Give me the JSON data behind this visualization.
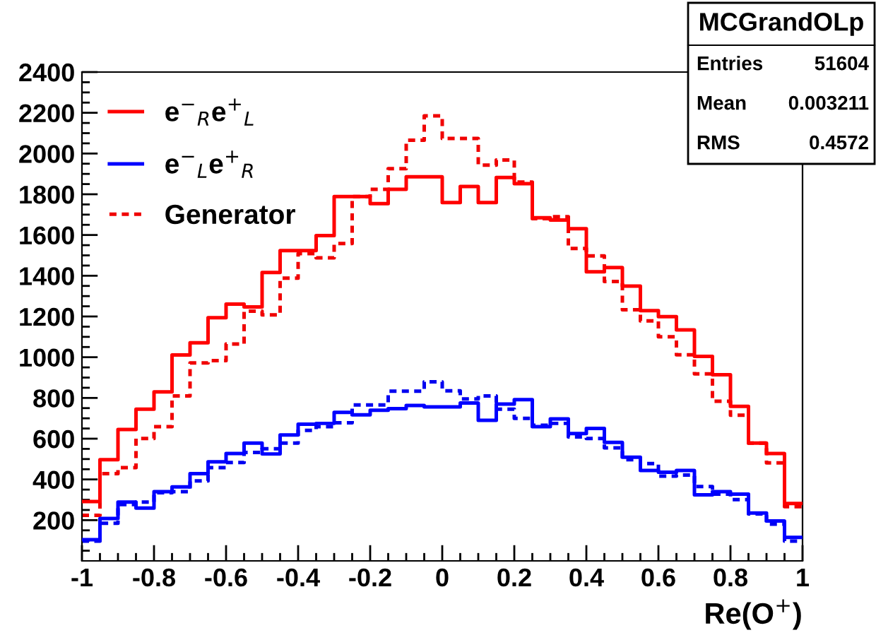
{
  "chart_data": {
    "type": "histogram",
    "xlabel": "Re(O$^{+}$)",
    "bins": [
      -1,
      -0.95,
      -0.9,
      -0.85,
      -0.8,
      -0.75,
      -0.7,
      -0.65,
      -0.6,
      -0.55,
      -0.5,
      -0.45,
      -0.4,
      -0.35,
      -0.3,
      -0.25,
      -0.2,
      -0.15,
      -0.1,
      -0.05,
      0,
      0.05,
      0.1,
      0.15,
      0.2,
      0.25,
      0.3,
      0.35,
      0.4,
      0.45,
      0.5,
      0.55,
      0.6,
      0.65,
      0.7,
      0.75,
      0.8,
      0.85,
      0.9,
      0.95,
      1
    ],
    "series": [
      {
        "name": "e$^{−}$$_{R}$e$^{+}$$_{L}$",
        "color": "#ff0000",
        "line_style": "solid",
        "values": [
          291,
          497,
          645,
          745,
          830,
          1011,
          1071,
          1194,
          1261,
          1247,
          1416,
          1523,
          1523,
          1597,
          1789,
          1789,
          1754,
          1824,
          1886,
          1886,
          1759,
          1838,
          1759,
          1882,
          1852,
          1685,
          1673,
          1631,
          1419,
          1440,
          1349,
          1229,
          1199,
          1134,
          1004,
          914,
          759,
          578,
          527,
          282
        ]
      },
      {
        "name": "e$^{−}$$_{L}$e$^{+}$$_{R}$",
        "color": "#0000ff",
        "line_style": "solid",
        "values": [
          104,
          208,
          289,
          259,
          340,
          363,
          428,
          486,
          527,
          578,
          525,
          618,
          671,
          675,
          729,
          717,
          740,
          747,
          763,
          756,
          756,
          775,
          690,
          770,
          792,
          659,
          697,
          625,
          650,
          582,
          509,
          444,
          435,
          444,
          324,
          340,
          328,
          235,
          196,
          115
        ]
      },
      {
        "name": "Generator",
        "color": "#f00000",
        "line_style": "dotted",
        "values": [
          224,
          428,
          458,
          601,
          659,
          810,
          972,
          983,
          1065,
          1226,
          1208,
          1388,
          1509,
          1488,
          1558,
          1789,
          1824,
          1926,
          2065,
          2185,
          2074,
          2074,
          1943,
          1968,
          1860,
          1680,
          1690,
          1534,
          1497,
          1372,
          1233,
          1178,
          1100,
          1012,
          918,
          784,
          715,
          578,
          481,
          266
        ]
      },
      {
        "color": "#0000f0",
        "line_style": "dotted",
        "values": [
          97,
          185,
          277,
          289,
          335,
          340,
          393,
          458,
          483,
          532,
          551,
          578,
          641,
          659,
          678,
          766,
          766,
          833,
          833,
          879,
          835,
          795,
          810,
          745,
          700,
          666,
          675,
          609,
          601,
          555,
          497,
          478,
          416,
          421,
          365,
          328,
          301,
          231,
          180,
          97
        ]
      }
    ],
    "xlim": [
      -1,
      1
    ],
    "ylim": [
      0,
      2400
    ],
    "xticks": [
      -1,
      -0.8,
      -0.6,
      -0.4,
      -0.2,
      0,
      0.2,
      0.4,
      0.6,
      0.8,
      1
    ],
    "yticks": [
      200,
      400,
      600,
      800,
      1000,
      1200,
      1400,
      1600,
      1800,
      2000,
      2200,
      2400
    ],
    "grid": false,
    "legend": "top left",
    "annotations": [
      "MCGrandOLp",
      "Entries",
      "51604",
      "Mean",
      "0.003211",
      "RMS",
      "0.4572"
    ]
  }
}
